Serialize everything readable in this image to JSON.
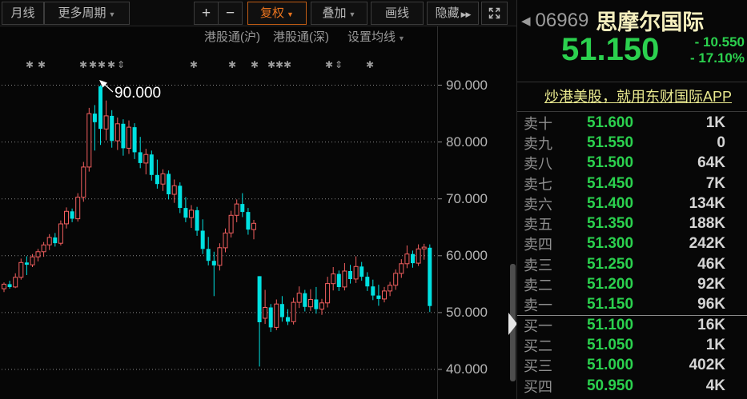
{
  "toolbar": {
    "period": "月线",
    "more_periods": "更多周期",
    "zoom_in": "+",
    "zoom_out": "−",
    "adjust": "复权",
    "overlay": "叠加",
    "draw": "画线",
    "hide": "隐藏",
    "hide_arrows": "▶▶",
    "caret": "▼"
  },
  "chart_header": {
    "hk_connect_sh": "港股通(沪)",
    "hk_connect_sz": "港股通(深)",
    "ma_settings": "设置均线",
    "caret": "▼"
  },
  "chart_data": {
    "type": "candlestick",
    "period": "monthly",
    "ylim": [
      38,
      92
    ],
    "grid": "dotted-horizontal",
    "y_ticks": [
      {
        "label": "90.000",
        "value": 90
      },
      {
        "label": "80.000",
        "value": 80
      },
      {
        "label": "70.000",
        "value": 70
      },
      {
        "label": "60.000",
        "value": 60
      },
      {
        "label": "50.000",
        "value": 50
      },
      {
        "label": "40.000",
        "value": 40
      }
    ],
    "annotation": {
      "text": "90.000",
      "price": 90
    },
    "colors": {
      "up_red": "#f25f5f",
      "down_cyan": "#00e1e1",
      "grid": "#8a8a8a",
      "marker": "#9a9a9a"
    },
    "event_markers": [
      {
        "x": 37,
        "glyph": "✱"
      },
      {
        "x": 52,
        "glyph": "✱"
      },
      {
        "x": 104,
        "glyph": "✱"
      },
      {
        "x": 116,
        "glyph": "✱"
      },
      {
        "x": 127,
        "glyph": "✱"
      },
      {
        "x": 139,
        "glyph": "✱"
      },
      {
        "x": 151,
        "glyph": "⇕"
      },
      {
        "x": 242,
        "glyph": "✱"
      },
      {
        "x": 290,
        "glyph": "✱"
      },
      {
        "x": 318,
        "glyph": "✱"
      },
      {
        "x": 339,
        "glyph": "✱"
      },
      {
        "x": 349,
        "glyph": "✱"
      },
      {
        "x": 359,
        "glyph": "✱"
      },
      {
        "x": 411,
        "glyph": "✱"
      },
      {
        "x": 423,
        "glyph": "⇕"
      },
      {
        "x": 462,
        "glyph": "✱"
      }
    ],
    "candles": [
      [
        54.2,
        55.3,
        53.6,
        55.0
      ],
      [
        55.0,
        55.6,
        54.2,
        54.5
      ],
      [
        54.5,
        56.9,
        54.3,
        56.2
      ],
      [
        56.2,
        59.5,
        55.8,
        58.8
      ],
      [
        58.8,
        59.9,
        56.6,
        58.4
      ],
      [
        58.4,
        60.3,
        58.0,
        59.8
      ],
      [
        59.8,
        61.2,
        59.0,
        60.7
      ],
      [
        60.7,
        62.4,
        59.8,
        61.9
      ],
      [
        61.9,
        63.8,
        61.0,
        63.2
      ],
      [
        63.2,
        64.0,
        61.6,
        62.2
      ],
      [
        62.2,
        66.2,
        61.8,
        65.6
      ],
      [
        65.6,
        68.5,
        64.8,
        67.8
      ],
      [
        67.8,
        68.3,
        65.9,
        66.5
      ],
      [
        66.5,
        71.0,
        66.0,
        70.3
      ],
      [
        70.3,
        76.5,
        69.5,
        75.6
      ],
      [
        75.6,
        86.0,
        74.8,
        85.0
      ],
      [
        85.0,
        86.5,
        78.5,
        83.5
      ],
      [
        89.8,
        90.0,
        79.5,
        82.3
      ],
      [
        82.3,
        87.3,
        80.3,
        84.6
      ],
      [
        84.6,
        85.6,
        79.0,
        80.2
      ],
      [
        80.2,
        84.3,
        78.6,
        83.2
      ],
      [
        83.2,
        84.0,
        77.6,
        78.9
      ],
      [
        78.9,
        83.8,
        77.9,
        82.6
      ],
      [
        82.6,
        83.3,
        77.0,
        78.2
      ],
      [
        78.2,
        80.9,
        75.4,
        76.3
      ],
      [
        76.3,
        78.8,
        74.3,
        77.8
      ],
      [
        77.8,
        78.5,
        73.2,
        74.2
      ],
      [
        74.2,
        76.9,
        71.8,
        72.6
      ],
      [
        72.6,
        75.2,
        71.4,
        74.4
      ],
      [
        74.4,
        75.0,
        69.9,
        70.8
      ],
      [
        70.8,
        73.4,
        69.3,
        72.3
      ],
      [
        72.3,
        72.9,
        67.5,
        68.4
      ],
      [
        68.4,
        70.3,
        65.9,
        66.7
      ],
      [
        66.7,
        68.9,
        64.9,
        68.0
      ],
      [
        68.0,
        68.6,
        63.5,
        64.4
      ],
      [
        64.4,
        66.4,
        60.3,
        61.2
      ],
      [
        61.2,
        63.3,
        58.3,
        59.1
      ],
      [
        59.1,
        60.7,
        52.9,
        58.3
      ],
      [
        58.3,
        62.2,
        57.4,
        61.4
      ],
      [
        61.4,
        64.8,
        60.6,
        64.0
      ],
      [
        64.0,
        67.9,
        63.2,
        67.1
      ],
      [
        67.1,
        69.9,
        65.9,
        69.1
      ],
      [
        69.1,
        71.0,
        66.8,
        67.7
      ],
      [
        67.7,
        68.4,
        63.7,
        64.6
      ],
      [
        64.6,
        66.3,
        62.9,
        65.7
      ],
      [
        56.4,
        56.4,
        40.5,
        48.3
      ],
      [
        49.0,
        54.0,
        48.0,
        50.9
      ],
      [
        50.9,
        51.5,
        46.6,
        47.4
      ],
      [
        47.4,
        52.3,
        46.9,
        51.5
      ],
      [
        51.5,
        52.9,
        48.4,
        49.2
      ],
      [
        49.2,
        50.6,
        47.8,
        48.4
      ],
      [
        48.4,
        52.6,
        47.9,
        51.8
      ],
      [
        51.8,
        54.6,
        50.8,
        53.4
      ],
      [
        53.4,
        54.0,
        50.2,
        51.0
      ],
      [
        51.0,
        54.1,
        50.3,
        52.3
      ],
      [
        52.3,
        54.5,
        49.8,
        50.6
      ],
      [
        50.6,
        52.4,
        49.6,
        51.7
      ],
      [
        51.7,
        56.3,
        50.9,
        55.1
      ],
      [
        55.1,
        58.0,
        53.9,
        56.8
      ],
      [
        56.8,
        57.4,
        53.8,
        54.5
      ],
      [
        54.5,
        58.7,
        53.9,
        57.3
      ],
      [
        57.3,
        58.4,
        55.1,
        55.9
      ],
      [
        55.9,
        59.9,
        55.2,
        58.1
      ],
      [
        58.1,
        58.9,
        55.6,
        56.3
      ],
      [
        56.3,
        57.1,
        53.8,
        54.6
      ],
      [
        54.6,
        55.8,
        52.2,
        53.0
      ],
      [
        53.0,
        54.9,
        51.2,
        52.4
      ],
      [
        52.4,
        54.5,
        51.8,
        53.8
      ],
      [
        53.8,
        55.4,
        52.9,
        54.8
      ],
      [
        54.8,
        57.6,
        54.0,
        56.9
      ],
      [
        56.9,
        59.4,
        56.1,
        58.6
      ],
      [
        58.6,
        61.8,
        57.8,
        60.3
      ],
      [
        60.3,
        60.9,
        57.9,
        58.7
      ],
      [
        58.7,
        62.0,
        58.2,
        61.2
      ],
      [
        61.2,
        62.1,
        59.3,
        61.5
      ],
      [
        61.4,
        62.0,
        50.1,
        51.15
      ]
    ]
  },
  "quote_panel": {
    "back_arrow": "◀",
    "code": "06969",
    "name": "思摩尔国际",
    "price": "51.150",
    "change": "- 10.550",
    "change_pct": "- 17.10%",
    "ad_text": "炒港美股，就用东财国际APP",
    "orderbook": {
      "sell": [
        [
          "卖十",
          "51.600",
          "1K"
        ],
        [
          "卖九",
          "51.550",
          "0"
        ],
        [
          "卖八",
          "51.500",
          "64K"
        ],
        [
          "卖七",
          "51.450",
          "7K"
        ],
        [
          "卖六",
          "51.400",
          "134K"
        ],
        [
          "卖五",
          "51.350",
          "188K"
        ],
        [
          "卖四",
          "51.300",
          "242K"
        ],
        [
          "卖三",
          "51.250",
          "46K"
        ],
        [
          "卖二",
          "51.200",
          "92K"
        ],
        [
          "卖一",
          "51.150",
          "96K"
        ]
      ],
      "buy": [
        [
          "买一",
          "51.100",
          "16K"
        ],
        [
          "买二",
          "51.050",
          "1K"
        ],
        [
          "买三",
          "51.000",
          "402K"
        ],
        [
          "买四",
          "50.950",
          "4K"
        ]
      ]
    }
  },
  "colors": {
    "price_green": "#2bd14e",
    "accent_orange": "#e8731e",
    "name_yellow": "#f5efbe",
    "ad_yellow": "#e9e98f",
    "down_cyan": "#00e1e1",
    "up_red": "#f25f5f"
  }
}
